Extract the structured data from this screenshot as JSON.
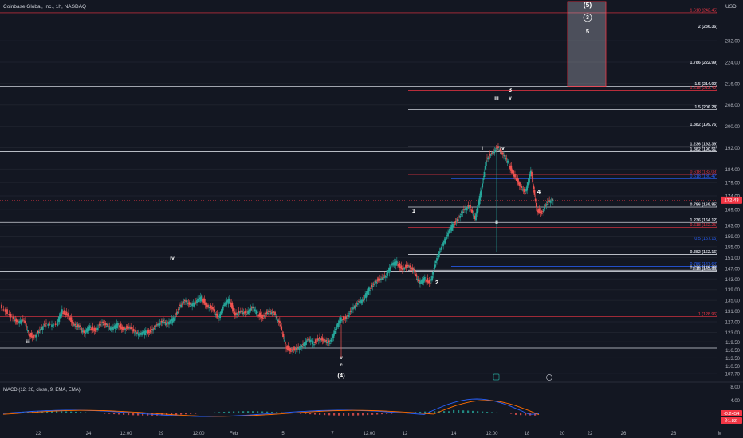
{
  "header": {
    "symbol_title": "Coinbase Global, Inc., 1h, NASDAQ",
    "currency": "USD"
  },
  "colors": {
    "background": "#131722",
    "up": "#26a69a",
    "down": "#ef5350",
    "white_line": "#d1d4dc",
    "red_line": "#f23645",
    "blue_line": "#2962ff",
    "price_badge": "#f23645"
  },
  "chart_data": {
    "type": "candlestick",
    "title": "Coinbase Global, Inc., 1h, NASDAQ",
    "ylim": [
      105,
      246
    ],
    "current_price": "172.43",
    "y_ticks": [
      "232.00",
      "224.00",
      "216.00",
      "208.00",
      "200.00",
      "192.00",
      "184.00",
      "179.00",
      "174.00",
      "169.00",
      "163.00",
      "159.00",
      "155.00",
      "151.00",
      "147.00",
      "143.00",
      "139.00",
      "135.00",
      "131.00",
      "127.00",
      "123.00",
      "119.50",
      "116.50",
      "113.50",
      "110.50",
      "107.70"
    ],
    "x_ticks": [
      "22",
      "24",
      "12:00",
      "29",
      "12:00",
      "Feb",
      "5",
      "7",
      "12:00",
      "12",
      "14",
      "12:00",
      "18",
      "20",
      "22",
      "26",
      "28",
      "M"
    ],
    "series_ohlc_points": [
      [
        -1,
        133
      ],
      [
        0,
        129
      ],
      [
        0.5,
        126.5
      ],
      [
        1,
        127.5
      ],
      [
        1.5,
        122.5
      ],
      [
        2,
        121.5
      ],
      [
        2.5,
        124
      ],
      [
        3,
        126
      ],
      [
        4,
        125.5
      ],
      [
        4.5,
        131
      ],
      [
        5,
        130
      ],
      [
        5.5,
        126
      ],
      [
        6,
        125
      ],
      [
        6.5,
        122.5
      ],
      [
        7,
        125
      ],
      [
        7.5,
        124
      ],
      [
        8,
        127
      ],
      [
        8.5,
        125.5
      ],
      [
        9,
        124
      ],
      [
        9.5,
        126
      ],
      [
        10,
        124.5
      ],
      [
        10.5,
        125
      ],
      [
        11,
        123
      ],
      [
        11.5,
        122
      ],
      [
        12,
        123
      ],
      [
        12.5,
        124
      ],
      [
        13,
        126
      ],
      [
        13.5,
        127
      ],
      [
        14,
        126
      ],
      [
        14.5,
        128
      ],
      [
        15,
        133
      ],
      [
        15.5,
        135
      ],
      [
        16,
        133
      ],
      [
        16.5,
        134
      ],
      [
        17,
        136
      ],
      [
        17.5,
        133
      ],
      [
        18,
        132
      ],
      [
        18.5,
        128
      ],
      [
        19,
        133
      ],
      [
        19.5,
        135
      ],
      [
        20,
        130
      ],
      [
        20.5,
        131
      ],
      [
        21,
        130
      ],
      [
        21.5,
        132
      ],
      [
        22,
        130
      ],
      [
        22.5,
        129
      ],
      [
        23,
        131
      ],
      [
        23.5,
        130
      ],
      [
        24,
        126
      ],
      [
        24.5,
        118
      ],
      [
        25,
        116.5
      ],
      [
        25.5,
        117
      ],
      [
        26,
        118
      ],
      [
        26.5,
        120
      ],
      [
        27,
        119
      ],
      [
        27.5,
        121
      ],
      [
        28,
        120
      ],
      [
        28.5,
        119
      ],
      [
        29,
        124
      ],
      [
        29.5,
        128
      ],
      [
        30,
        129
      ],
      [
        30.5,
        132
      ],
      [
        31,
        134
      ],
      [
        31.5,
        135
      ],
      [
        32,
        139
      ],
      [
        32.5,
        142
      ],
      [
        33,
        143
      ],
      [
        33.5,
        144
      ],
      [
        34,
        148
      ],
      [
        34.5,
        149
      ],
      [
        35,
        147
      ],
      [
        35.5,
        148
      ],
      [
        36,
        146
      ],
      [
        36.5,
        141
      ],
      [
        37,
        143
      ],
      [
        37.5,
        142
      ],
      [
        38,
        150
      ],
      [
        38.5,
        155
      ],
      [
        39,
        159
      ],
      [
        39.5,
        163
      ],
      [
        40,
        166
      ],
      [
        40.5,
        169
      ],
      [
        41,
        170
      ],
      [
        41.5,
        165
      ],
      [
        42,
        175
      ],
      [
        42.5,
        188
      ],
      [
        43,
        190
      ],
      [
        43.5,
        192
      ],
      [
        44,
        189
      ],
      [
        44.5,
        186
      ],
      [
        45,
        182
      ],
      [
        45.5,
        178
      ],
      [
        46,
        175
      ],
      [
        46.5,
        183
      ],
      [
        47,
        169
      ],
      [
        47.5,
        168
      ],
      [
        48,
        172
      ],
      [
        48.5,
        172.4
      ]
    ],
    "fib_levels": [
      {
        "label": "1.618 (242.45)",
        "value": 242.45,
        "color": "red"
      },
      {
        "label": "2 (236.36)",
        "value": 236.36,
        "color": "white"
      },
      {
        "label": "1.786 (222.99)",
        "value": 222.99,
        "color": "white"
      },
      {
        "label": "1.5 (214.92)",
        "value": 214.92,
        "color": "white"
      },
      {
        "label": "1.618 (213.42)",
        "value": 213.42,
        "color": "red"
      },
      {
        "label": "1.5 (206.28)",
        "value": 206.28,
        "color": "white"
      },
      {
        "label": "1.382 (199.76)",
        "value": 199.76,
        "color": "white"
      },
      {
        "label": "1.236 (192.39)",
        "value": 192.39,
        "color": "white"
      },
      {
        "label": "1.382 (190.51)",
        "value": 190.51,
        "color": "white"
      },
      {
        "label": "0.618 (182.03)",
        "value": 182.03,
        "color": "red"
      },
      {
        "label": "0.618 (180.47)",
        "value": 180.47,
        "color": "blue"
      },
      {
        "label": "0.786 (169.85)",
        "value": 169.85,
        "color": "white"
      },
      {
        "label": "1.236 (164.12)",
        "value": 164.12,
        "color": "white"
      },
      {
        "label": "0.618 (162.25)",
        "value": 162.25,
        "color": "red"
      },
      {
        "label": "0.5 (157.15)",
        "value": 157.15,
        "color": "blue"
      },
      {
        "label": "0.382 (152.16)",
        "value": 152.16,
        "color": "white"
      },
      {
        "label": "0.786 (147.64)",
        "value": 147.64,
        "color": "blue"
      },
      {
        "label": "0.236 (146.28)",
        "value": 146.28,
        "color": "white"
      },
      {
        "label": "1.18 (145.88)",
        "value": 145.88,
        "color": "white"
      },
      {
        "label": "1 (128.96)",
        "value": 128.96,
        "color": "red"
      }
    ],
    "wave_labels": [
      "(5)",
      "3",
      "5",
      "3",
      "v",
      "iii",
      "i",
      "iv",
      "4",
      "1",
      "2",
      "ii",
      "iv",
      "iii",
      "v",
      "c",
      "(4)"
    ],
    "macd": {
      "title": "MACD (12, 26, close, 9, EMA, EMA)",
      "y_ticks": [
        "8.00",
        "4.00"
      ],
      "macd_badge": "-0.2454",
      "signal_badge": "-1.82",
      "signal_tail": "2"
    }
  }
}
